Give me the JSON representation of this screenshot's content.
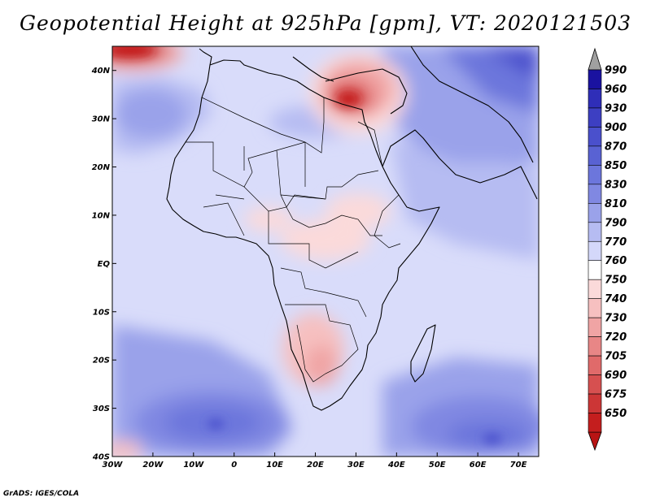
{
  "title": "Geopotential Height at 925hPa [gpm], VT: 2020121503",
  "credit": "GrADS: IGES/COLA",
  "map": {
    "lat_labels": [
      "40N",
      "30N",
      "20N",
      "10N",
      "EQ",
      "10S",
      "20S",
      "30S",
      "40S"
    ],
    "lon_labels": [
      "30W",
      "20W",
      "10W",
      "0",
      "10E",
      "20E",
      "30E",
      "40E",
      "50E",
      "60E",
      "70E"
    ],
    "extent": {
      "lon_min": -30,
      "lon_max": 75,
      "lat_min": -40,
      "lat_max": 45
    }
  },
  "colorbar": {
    "levels": [
      "990",
      "960",
      "930",
      "900",
      "870",
      "850",
      "830",
      "810",
      "790",
      "770",
      "760",
      "750",
      "740",
      "730",
      "720",
      "705",
      "690",
      "675",
      "650"
    ],
    "colors": [
      "#1a12a0",
      "#2f2eb8",
      "#3d3fc2",
      "#4a50cc",
      "#5962d3",
      "#6c76dc",
      "#8088e2",
      "#9aa2ea",
      "#b6bcf2",
      "#d4d8fa",
      "#ffffff",
      "#fbdada",
      "#f6c0c0",
      "#f0a4a4",
      "#e88686",
      "#e06a6a",
      "#d65050",
      "#cc3636",
      "#c41e1e"
    ],
    "over_color": "#a0a0a0",
    "under_color": "#b81414"
  }
}
